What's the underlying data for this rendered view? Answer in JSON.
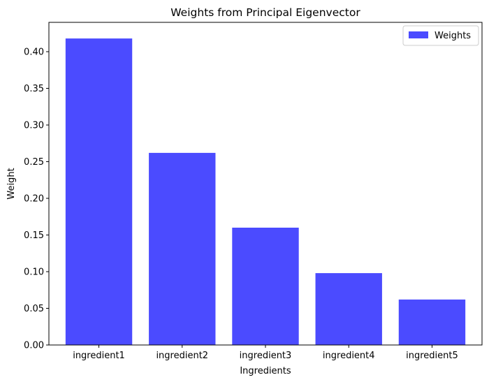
{
  "chart_data": {
    "type": "bar",
    "title": "Weights from Principal Eigenvector",
    "xlabel": "Ingredients",
    "ylabel": "Weight",
    "categories": [
      "ingredient1",
      "ingredient2",
      "ingredient3",
      "ingredient4",
      "ingredient5"
    ],
    "series": [
      {
        "name": "Weights",
        "values": [
          0.418,
          0.262,
          0.16,
          0.098,
          0.062
        ]
      }
    ],
    "ylim": [
      0,
      0.44
    ],
    "yticks": [
      0,
      0.05,
      0.1,
      0.15,
      0.2,
      0.25,
      0.3,
      0.35,
      0.4
    ],
    "ytick_labels": [
      "0.00",
      "0.05",
      "0.10",
      "0.15",
      "0.20",
      "0.25",
      "0.30",
      "0.35",
      "0.40"
    ],
    "legend": {
      "location": "upper right",
      "labels": [
        "Weights"
      ]
    },
    "grid": false,
    "colors": {
      "bar": "#4b4bff",
      "axis": "#000000",
      "background": "#ffffff"
    }
  }
}
